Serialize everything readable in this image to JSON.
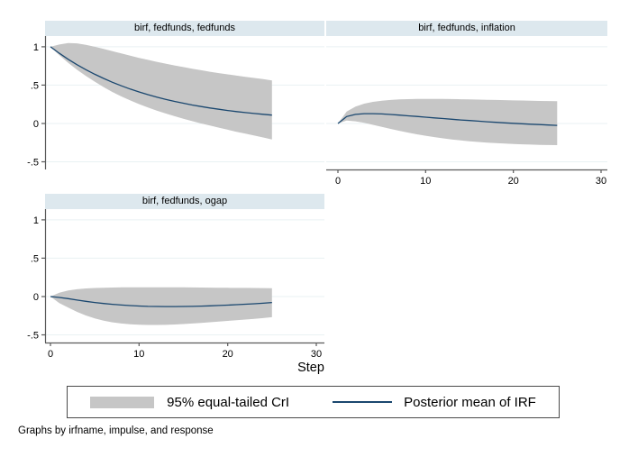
{
  "figure": {
    "xlabel": "Step",
    "note": "Graphs by irfname, impulse, and response"
  },
  "legend": {
    "band_label": "95% equal-tailed CrI",
    "line_label": "Posterior mean of IRF"
  },
  "colors": {
    "band": "#c6c6c6",
    "line": "#1a476f",
    "grid": "#e9f1f3",
    "axis": "#5a5a5a",
    "strip_bg": "#dde8ee",
    "text": "#000000"
  },
  "chart_data": {
    "type": "area",
    "description": "Bayesian VAR impulse-response functions: posterior mean with 95% equal-tailed credible interval band",
    "xlim": [
      0,
      30
    ],
    "ylim": [
      -0.6,
      1.14
    ],
    "grid": true,
    "xticks": {
      "values": [
        0,
        10,
        20,
        30
      ],
      "labels": [
        "0",
        "10",
        "20",
        "30"
      ]
    },
    "yticks": {
      "values": [
        1,
        0.5,
        0,
        -0.5
      ],
      "labels": [
        "1",
        ".5",
        "0",
        "-.5"
      ]
    },
    "xlabel": "Step",
    "series_names": [
      "95% equal-tailed CrI",
      "Posterior mean of IRF"
    ],
    "panels": [
      {
        "title": "birf, fedfunds, fedfunds",
        "show_yaxis": true,
        "show_xaxis": false,
        "x": [
          0,
          1,
          2,
          3,
          4,
          5,
          6,
          7,
          8,
          9,
          10,
          11,
          12,
          13,
          14,
          15,
          16,
          17,
          18,
          19,
          20,
          21,
          22,
          23,
          24,
          25
        ],
        "mean": [
          1,
          0.915,
          0.837,
          0.766,
          0.701,
          0.641,
          0.587,
          0.537,
          0.491,
          0.449,
          0.411,
          0.376,
          0.344,
          0.315,
          0.288,
          0.264,
          0.241,
          0.221,
          0.202,
          0.185,
          0.169,
          0.155,
          0.142,
          0.13,
          0.119,
          0.109
        ],
        "upper": [
          1,
          1.03,
          1.05,
          1.045,
          1.025,
          1.0,
          0.972,
          0.943,
          0.913,
          0.884,
          0.856,
          0.83,
          0.804,
          0.78,
          0.757,
          0.735,
          0.714,
          0.694,
          0.675,
          0.657,
          0.64,
          0.624,
          0.608,
          0.593,
          0.578,
          0.56
        ],
        "lower": [
          1,
          0.89,
          0.79,
          0.7,
          0.62,
          0.545,
          0.475,
          0.41,
          0.352,
          0.3,
          0.252,
          0.208,
          0.168,
          0.13,
          0.095,
          0.062,
          0.03,
          0.0,
          -0.028,
          -0.055,
          -0.082,
          -0.108,
          -0.133,
          -0.158,
          -0.183,
          -0.208
        ]
      },
      {
        "title": "birf, fedfunds, inflation",
        "show_yaxis": false,
        "show_xaxis": true,
        "x": [
          0,
          1,
          2,
          3,
          4,
          5,
          6,
          7,
          8,
          9,
          10,
          11,
          12,
          13,
          14,
          15,
          16,
          17,
          18,
          19,
          20,
          21,
          22,
          23,
          24,
          25
        ],
        "mean": [
          0,
          0.09,
          0.118,
          0.128,
          0.128,
          0.124,
          0.117,
          0.109,
          0.1,
          0.091,
          0.082,
          0.073,
          0.064,
          0.055,
          0.046,
          0.038,
          0.03,
          0.022,
          0.015,
          0.008,
          0.002,
          -0.004,
          -0.01,
          -0.015,
          -0.02,
          -0.025
        ],
        "upper": [
          0,
          0.155,
          0.22,
          0.258,
          0.282,
          0.297,
          0.307,
          0.313,
          0.317,
          0.319,
          0.32,
          0.32,
          0.319,
          0.318,
          0.316,
          0.314,
          0.311,
          0.309,
          0.306,
          0.304,
          0.301,
          0.299,
          0.296,
          0.294,
          0.292,
          0.29
        ],
        "lower": [
          0,
          0.038,
          0.028,
          0.008,
          -0.018,
          -0.045,
          -0.071,
          -0.096,
          -0.119,
          -0.141,
          -0.16,
          -0.178,
          -0.194,
          -0.208,
          -0.221,
          -0.232,
          -0.242,
          -0.25,
          -0.257,
          -0.263,
          -0.268,
          -0.272,
          -0.276,
          -0.279,
          -0.281,
          -0.283
        ]
      },
      {
        "title": "birf, fedfunds, ogap",
        "show_yaxis": true,
        "show_xaxis": true,
        "x": [
          0,
          1,
          2,
          3,
          4,
          5,
          6,
          7,
          8,
          9,
          10,
          11,
          12,
          13,
          14,
          15,
          16,
          17,
          18,
          19,
          20,
          21,
          22,
          23,
          24,
          25
        ],
        "mean": [
          0,
          -0.012,
          -0.028,
          -0.046,
          -0.063,
          -0.078,
          -0.091,
          -0.102,
          -0.111,
          -0.118,
          -0.124,
          -0.128,
          -0.13,
          -0.131,
          -0.131,
          -0.13,
          -0.128,
          -0.125,
          -0.121,
          -0.117,
          -0.112,
          -0.106,
          -0.1,
          -0.094,
          -0.087,
          -0.078
        ],
        "upper": [
          0,
          0.05,
          0.078,
          0.095,
          0.105,
          0.111,
          0.115,
          0.117,
          0.119,
          0.12,
          0.12,
          0.12,
          0.12,
          0.12,
          0.12,
          0.119,
          0.118,
          0.117,
          0.116,
          0.115,
          0.114,
          0.113,
          0.112,
          0.111,
          0.11,
          0.109
        ],
        "lower": [
          0,
          -0.085,
          -0.145,
          -0.2,
          -0.247,
          -0.285,
          -0.315,
          -0.337,
          -0.352,
          -0.362,
          -0.368,
          -0.371,
          -0.371,
          -0.369,
          -0.365,
          -0.359,
          -0.352,
          -0.344,
          -0.336,
          -0.327,
          -0.318,
          -0.309,
          -0.3,
          -0.291,
          -0.281,
          -0.27
        ]
      }
    ]
  }
}
